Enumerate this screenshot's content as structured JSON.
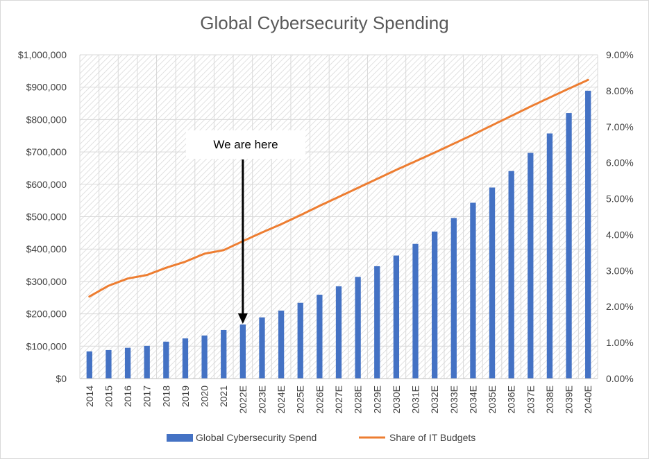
{
  "chart_data": {
    "type": "bar",
    "title": "Global Cybersecurity Spending",
    "categories": [
      "2014",
      "2015",
      "2016",
      "2017",
      "2018",
      "2019",
      "2020",
      "2021",
      "2022E",
      "2023E",
      "2024E",
      "2025E",
      "2026E",
      "2027E",
      "2028E",
      "2029E",
      "2030E",
      "2031E",
      "2032E",
      "2033E",
      "2034E",
      "2035E",
      "2036E",
      "2037E",
      "2038E",
      "2039E",
      "2040E"
    ],
    "series": [
      {
        "name": "Global Cybersecurity Spend",
        "type": "bar",
        "axis": "left",
        "color": "#4472C4",
        "values": [
          84000,
          88000,
          95000,
          101000,
          114000,
          124000,
          133000,
          150000,
          167000,
          189000,
          210000,
          234000,
          259000,
          285000,
          314000,
          347000,
          380000,
          416000,
          454000,
          496000,
          543000,
          590000,
          641000,
          697000,
          757000,
          820000,
          889000
        ]
      },
      {
        "name": "Share of IT Budgets",
        "type": "line",
        "axis": "right",
        "color": "#ED7D31",
        "values": [
          2.28,
          2.58,
          2.78,
          2.88,
          3.08,
          3.25,
          3.47,
          3.57,
          3.82,
          4.06,
          4.29,
          4.54,
          4.8,
          5.05,
          5.3,
          5.55,
          5.8,
          6.04,
          6.28,
          6.53,
          6.78,
          7.04,
          7.3,
          7.56,
          7.81,
          8.06,
          8.3
        ]
      }
    ],
    "y_left": {
      "min": 0,
      "max": 1000000,
      "step": 100000,
      "tick_labels": [
        "$0",
        "$100,000",
        "$200,000",
        "$300,000",
        "$400,000",
        "$500,000",
        "$600,000",
        "$700,000",
        "$800,000",
        "$900,000",
        "$1,000,000"
      ]
    },
    "y_right": {
      "min": 0,
      "max": 9,
      "step": 1,
      "tick_labels": [
        "0.00%",
        "1.00%",
        "2.00%",
        "3.00%",
        "4.00%",
        "5.00%",
        "6.00%",
        "7.00%",
        "8.00%",
        "9.00%"
      ]
    },
    "grid": true,
    "legend": "bottom",
    "annotation": {
      "text": "We are here",
      "target_category": "2022E"
    }
  }
}
